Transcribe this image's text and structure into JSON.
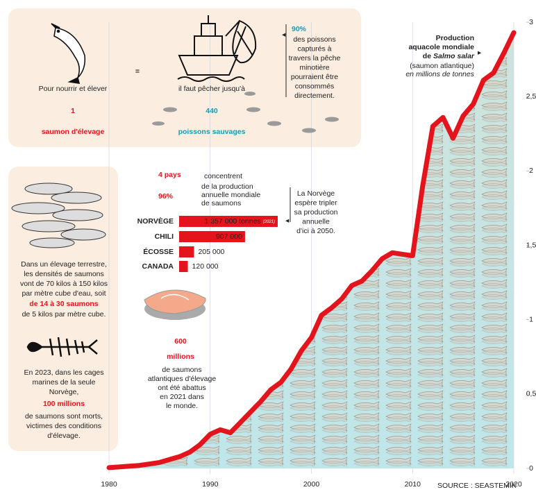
{
  "chart_data": [
    {
      "type": "line",
      "title_lines": [
        "Production",
        "aquacole mondiale"
      ],
      "title_prefix": "de",
      "title_species": "Salmo salar",
      "subtitle": "(saumon atlantique)",
      "unit": "en millions de tonnes",
      "source": "SOURCE : SEASTEMIK",
      "x": [
        1980,
        1981,
        1982,
        1983,
        1984,
        1985,
        1986,
        1987,
        1988,
        1989,
        1990,
        1991,
        1992,
        1993,
        1994,
        1995,
        1996,
        1997,
        1998,
        1999,
        2000,
        2001,
        2002,
        2003,
        2004,
        2005,
        2006,
        2007,
        2008,
        2009,
        2010,
        2011,
        2012,
        2013,
        2014,
        2015,
        2016,
        2017,
        2018,
        2019,
        2020
      ],
      "series": [
        {
          "name": "Production",
          "color": "#e3141b",
          "values": [
            0.005,
            0.01,
            0.015,
            0.02,
            0.03,
            0.04,
            0.06,
            0.08,
            0.11,
            0.16,
            0.23,
            0.26,
            0.24,
            0.31,
            0.38,
            0.45,
            0.53,
            0.58,
            0.67,
            0.79,
            0.88,
            1.03,
            1.08,
            1.14,
            1.23,
            1.26,
            1.33,
            1.41,
            1.45,
            1.44,
            1.43,
            1.9,
            2.3,
            2.36,
            2.22,
            2.37,
            2.45,
            2.61,
            2.66,
            2.79,
            2.93
          ]
        }
      ],
      "xlim": [
        1980,
        2020
      ],
      "xticks": [
        1980,
        1990,
        2000,
        2010,
        2020
      ],
      "ylim": [
        0,
        3
      ],
      "yticks": [
        0,
        {
          "value": 0.5,
          "label": "0,5"
        },
        1,
        {
          "value": 1.5,
          "label": "1,5"
        },
        2,
        {
          "value": 2.5,
          "label": "2,5"
        },
        3
      ],
      "grid": true
    },
    {
      "type": "hbar",
      "categories": [
        "NORVÈGE",
        "CHILI",
        "ÉCOSSE",
        "CANADA"
      ],
      "values": [
        1357000,
        907000,
        205000,
        120000
      ],
      "value_labels": [
        "1 357 000 tonnes",
        "907 000",
        "205 000",
        "120 000"
      ],
      "annotation": "(2021)",
      "color": "#e3141b"
    }
  ],
  "feed": {
    "intro": "Pour nourrir et élever",
    "number": "1",
    "label": "saumon d'élevage",
    "equals": "=",
    "intro2": "il faut pêcher jusqu'à",
    "number2": "440",
    "label2": "poissons sauvages"
  },
  "note_90": {
    "number": "90%",
    "lines": [
      "des poissons",
      "capturés à",
      "travers la pêche",
      "minotière",
      "pourraient être",
      "consommés",
      "directement."
    ]
  },
  "countries": {
    "number": "4 pays",
    "verb": "concentrent",
    "share": "96%",
    "lines": [
      "de la production",
      "annuelle mondiale",
      "de saumons"
    ]
  },
  "norway_note": {
    "lines": [
      "La Norvège",
      "espère tripler",
      "sa production",
      "annuelle",
      "d'ici à 2050."
    ]
  },
  "density": {
    "lines": [
      "Dans un élevage terrestre,",
      "les densités de saumons",
      "vont de 70 kilos à 150 kilos",
      "par mètre cube d'eau, soit"
    ],
    "highlight": "de 14 à 30 saumons",
    "end": "de 5 kilos par mètre cube."
  },
  "deaths": {
    "lines": [
      "En 2023, dans les cages",
      "marines de la seule",
      "Norvège,"
    ],
    "highlight": "100 millions",
    "end_lines": [
      "de saumons sont morts,",
      "victimes des conditions",
      "d'élevage."
    ]
  },
  "slaughter": {
    "number": "600",
    "unit": "millions",
    "lines": [
      "de saumons",
      "atlantiques d'élevage",
      "ont été abattus",
      "en 2021 dans",
      "le monde."
    ]
  }
}
